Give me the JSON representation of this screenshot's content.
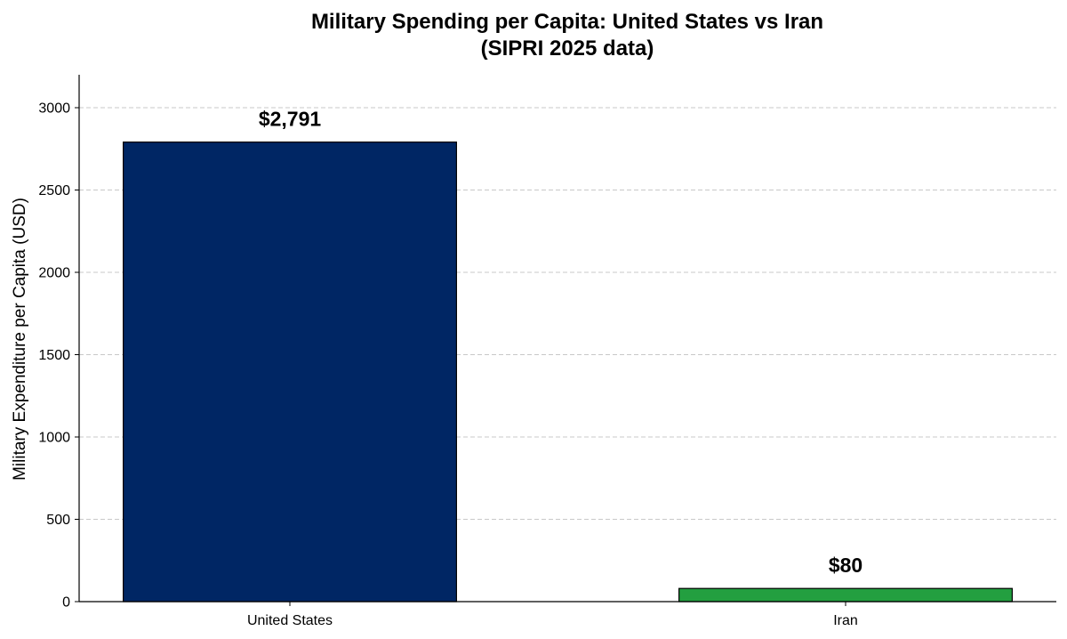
{
  "chart_data": {
    "type": "bar",
    "title_line1": "Military Spending per Capita: United States vs Iran",
    "title_line2": "(SIPRI 2025 data)",
    "xlabel": "",
    "ylabel": "Military Expenditure per Capita (USD)",
    "categories": [
      "United States",
      "Iran"
    ],
    "values": [
      2791,
      80
    ],
    "value_labels": [
      "$2,791",
      "$80"
    ],
    "colors": [
      "#002664",
      "#239f40"
    ],
    "ylim": [
      0,
      3200
    ],
    "yticks": [
      0,
      500,
      1000,
      1500,
      2000,
      2500,
      3000
    ],
    "grid": "y-dashed",
    "legend": "none"
  }
}
